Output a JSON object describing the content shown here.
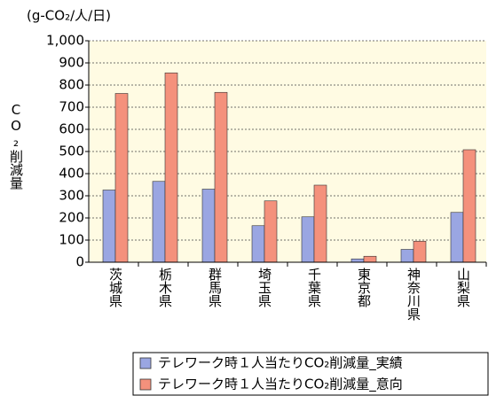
{
  "chart_data": {
    "type": "bar",
    "unit_label": "(g-CO₂/人/日)",
    "y_label": "CO₂削減量",
    "categories": [
      "茨城県",
      "栃木県",
      "群馬県",
      "埼玉県",
      "千葉県",
      "東京都",
      "神奈川県",
      "山梨県"
    ],
    "series": [
      {
        "name": "テレワーク時１人当たりCO₂削減量_実績",
        "color": "#9aa6e2",
        "values": [
          326,
          365,
          330,
          165,
          205,
          15,
          58,
          225
        ]
      },
      {
        "name": "テレワーク時１人当たりCO₂削減量_意向",
        "color": "#f4917c",
        "values": [
          762,
          855,
          767,
          277,
          348,
          27,
          95,
          508
        ]
      }
    ],
    "ylim": [
      0,
      1000
    ],
    "yticks": [
      0,
      100,
      200,
      300,
      400,
      500,
      600,
      700,
      800,
      900,
      {
        "value": 1000,
        "label": "1,000"
      }
    ],
    "grid": true,
    "legend": "bottom"
  }
}
